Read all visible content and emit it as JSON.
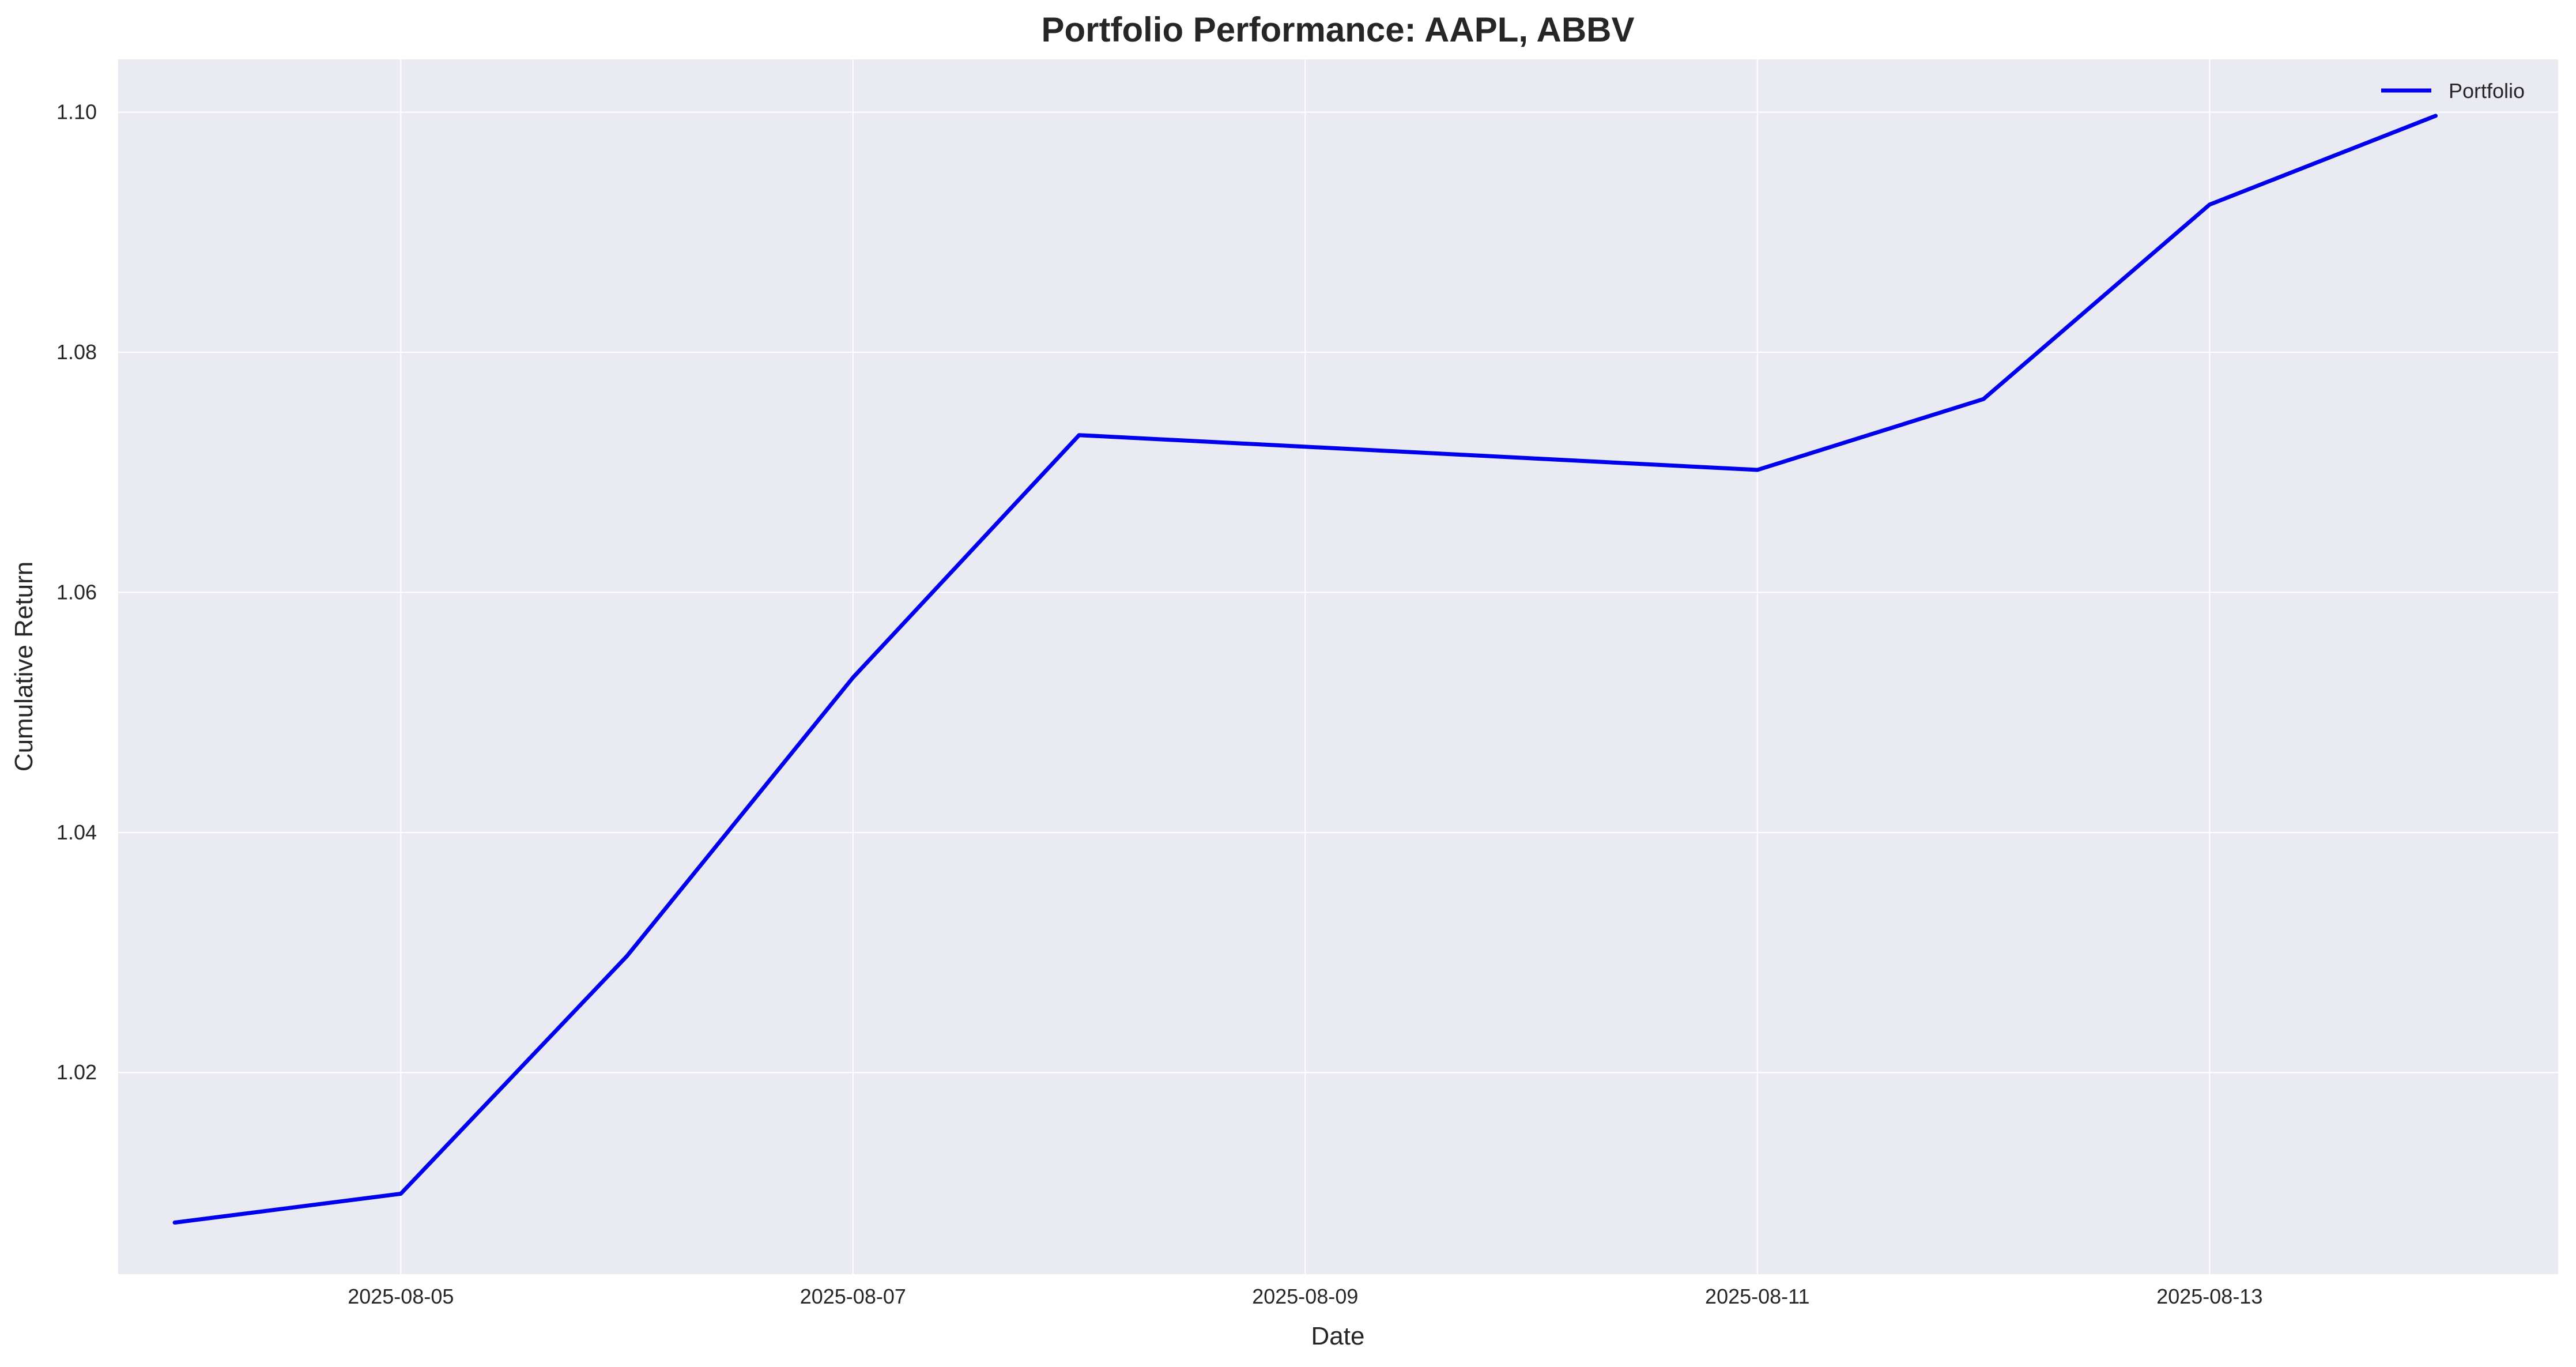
{
  "chart_data": {
    "type": "line",
    "title": "Portfolio Performance: AAPL, ABBV",
    "xlabel": "Date",
    "ylabel": "Cumulative Return",
    "x": [
      "2025-08-04",
      "2025-08-05",
      "2025-08-06",
      "2025-08-07",
      "2025-08-08",
      "2025-08-11",
      "2025-08-12",
      "2025-08-13",
      "2025-08-14"
    ],
    "xticks": [
      "2025-08-05",
      "2025-08-07",
      "2025-08-09",
      "2025-08-11",
      "2025-08-13"
    ],
    "xlim": [
      "2025-08-03T18:00",
      "2025-08-14T13:00"
    ],
    "yticks": [
      1.02,
      1.04,
      1.06,
      1.08,
      1.1
    ],
    "ylim": [
      1.0032,
      1.1044
    ],
    "series": [
      {
        "name": "Portfolio",
        "values": [
          1.0075,
          1.0099,
          1.0297,
          1.0529,
          1.0731,
          1.0702,
          1.0761,
          1.0923,
          1.0997
        ],
        "color": "#0000ee"
      }
    ],
    "grid": true,
    "legend_position": "top-right",
    "background_color": "#eaeaf2",
    "grid_color": "#ffffff"
  }
}
